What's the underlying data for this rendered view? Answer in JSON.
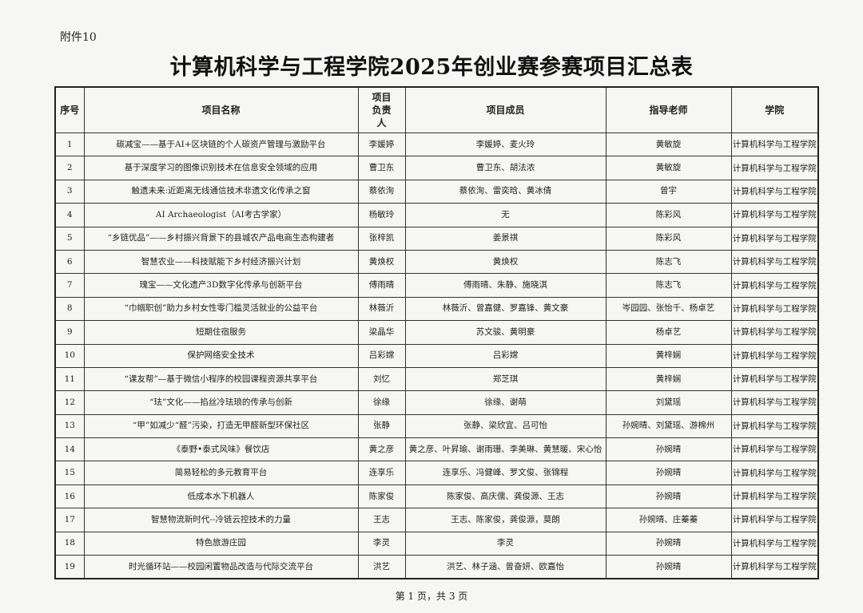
{
  "attachment_label": "附件10",
  "title": "计算机科学与工程学院2025年创业赛参赛项目汇总表",
  "table": {
    "headers": [
      "序号",
      "项目名称",
      "项目负责人",
      "项目成员",
      "指导老师",
      "学院"
    ],
    "rows": [
      [
        "1",
        "碳减宝——基于AI+区块链的个人碳资产管理与激励平台",
        "李媛婷",
        "李媛婷、麦火玲",
        "黄敏旋",
        "计算机科学与工程学院"
      ],
      [
        "2",
        "基于深度学习的图像识别技术在信息安全领域的应用",
        "曹卫东",
        "曹卫东、胡法浓",
        "黄敏旋",
        "计算机科学与工程学院"
      ],
      [
        "3",
        "触遗未来:近距离无线通信技术非遗文化传承之窗",
        "蔡依洵",
        "蔡依洵、雷奕晗、黄冰倩",
        "曾宇",
        "计算机科学与工程学院"
      ],
      [
        "4",
        "AI Archaeologist（AI考古学家）",
        "杨敏玲",
        "无",
        "陈彩风",
        "计算机科学与工程学院"
      ],
      [
        "5",
        "“乡链优品”——乡村振兴背景下的县城农产品电商生态构建者",
        "张梓凯",
        "姜景祺",
        "陈彩风",
        "计算机科学与工程学院"
      ],
      [
        "6",
        "智慧农业——科技赋能下乡村经济振兴计划",
        "黄焕权",
        "黄焕权",
        "陈志飞",
        "计算机科学与工程学院"
      ],
      [
        "7",
        "瑰宝——文化遗产3D数字化传承与创新平台",
        "傅雨晴",
        "傅雨晴、朱静、施晓淇",
        "陈志飞",
        "计算机科学与工程学院"
      ],
      [
        "8",
        "“巾帼职创”助力乡村女性零门槛灵活就业的公益平台",
        "林薇沂",
        "林薇沂、曾嘉健、罗嘉锋、黄文豪",
        "岑园园、张怡千、杨卓艺",
        "计算机科学与工程学院"
      ],
      [
        "9",
        "短期住宿服务",
        "梁晶华",
        "苏文骏、黄明豪",
        "杨卓艺",
        "计算机科学与工程学院"
      ],
      [
        "10",
        "保护网络安全技术",
        "吕彩嫦",
        "吕彩嫦",
        "黄梓娴",
        "计算机科学与工程学院"
      ],
      [
        "11",
        "“课友帮”—基于微信小程序的校园课程资源共享平台",
        "刘忆",
        "郑芝琪",
        "黄梓娴",
        "计算机科学与工程学院"
      ],
      [
        "12",
        "“珐”文化——掐丝冷珐琅的传承与创新",
        "徐缘",
        "徐缘、谢萌",
        "刘黛瑶",
        "计算机科学与工程学院"
      ],
      [
        "13",
        "“甲”如减少“醛”污染，打造无甲醛新型环保社区",
        "张静",
        "张静、梁欣宜、吕可怡",
        "孙婉晴、刘黛瑶、游棉州",
        "计算机科学与工程学院"
      ],
      [
        "14",
        "《泰野•泰式风味》餐饮店",
        "黄之彦",
        "黄之彦、叶昇瑜、谢雨珊、李美琳、黄慧暖、宋心怡",
        "孙婉晴",
        "计算机科学与工程学院"
      ],
      [
        "15",
        "简易轻松的多元教育平台",
        "连享乐",
        "连享乐、冯健峰、罗文俊、张锦程",
        "孙婉晴",
        "计算机科学与工程学院"
      ],
      [
        "16",
        "低成本水下机器人",
        "陈家俊",
        "陈家俊、高庆儒、龚俊源、王志",
        "孙婉晴",
        "计算机科学与工程学院"
      ],
      [
        "17",
        "智慧物流新时代--冷链云控技术的力量",
        "王志",
        "王志、陈家俊，龚俊源，莫朗",
        "孙婉晴、庄蓁蓁",
        "计算机科学与工程学院"
      ],
      [
        "18",
        "特色旅游庄园",
        "李灵",
        "李灵",
        "孙婉晴",
        "计算机科学与工程学院"
      ],
      [
        "19",
        "时光循环站——校园闲置物品改造与代际交流平台",
        "洪艺",
        "洪艺、林子涵、曾奋妍、欧嘉怡",
        "孙婉晴",
        "计算机科学与工程学院"
      ]
    ]
  },
  "footer": "第 1 页，共 3 页"
}
